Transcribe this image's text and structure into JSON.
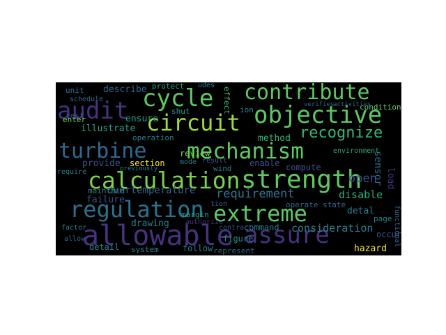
{
  "words": [
    {
      "text": "allowable",
      "color": "#46327e"
    },
    {
      "text": "assure",
      "color": "#46327e"
    },
    {
      "text": "regulation",
      "color": "#2c728e"
    },
    {
      "text": "calculation",
      "color": "#7ad151"
    },
    {
      "text": "strength",
      "color": "#5ec962"
    },
    {
      "text": "extreme",
      "color": "#5ec962"
    },
    {
      "text": "mechanism",
      "color": "#5ec962"
    },
    {
      "text": "turbine",
      "color": "#31688e"
    },
    {
      "text": "objective",
      "color": "#5ec962"
    },
    {
      "text": "contribute",
      "color": "#5ec962"
    },
    {
      "text": "circuit",
      "color": "#9fda3a"
    },
    {
      "text": "cycle",
      "color": "#5ec962"
    },
    {
      "text": "audit",
      "color": "#46327e"
    },
    {
      "text": "recognize",
      "color": "#35b779"
    },
    {
      "text": "requirement",
      "color": "#2c728e"
    },
    {
      "text": "consideration",
      "color": "#26828e"
    },
    {
      "text": "disable",
      "color": "#29af7f"
    },
    {
      "text": "command",
      "color": "#26828e"
    },
    {
      "text": "open",
      "color": "#3b528b"
    },
    {
      "text": "overtemperature",
      "color": "#31688e"
    },
    {
      "text": "failure",
      "color": "#3b528b"
    },
    {
      "text": "drawing",
      "color": "#26828e"
    },
    {
      "text": "describe",
      "color": "#31688e"
    },
    {
      "text": "illustrate",
      "color": "#22a884"
    },
    {
      "text": "ensure",
      "color": "#20a386"
    },
    {
      "text": "provide",
      "color": "#3b528b"
    },
    {
      "text": "method",
      "color": "#35b779"
    },
    {
      "text": "enable",
      "color": "#3b528b"
    },
    {
      "text": "compute",
      "color": "#3b528b"
    },
    {
      "text": "review",
      "color": "#7ad151"
    },
    {
      "text": "section",
      "color": "#fde725"
    },
    {
      "text": "margin",
      "color": "#20a386"
    },
    {
      "text": "maintain",
      "color": "#26828e"
    },
    {
      "text": "detail",
      "color": "#26828e"
    },
    {
      "text": "follow",
      "color": "#26828e"
    },
    {
      "text": "figure",
      "color": "#21918c"
    },
    {
      "text": "hazard",
      "color": "#fde725"
    },
    {
      "text": "occur",
      "color": "#3b528b"
    },
    {
      "text": "detal",
      "color": "#26828e"
    },
    {
      "text": "sensor",
      "color": "#31688e"
    },
    {
      "text": "load",
      "color": "#46327e"
    },
    {
      "text": "environment",
      "color": "#22a884"
    },
    {
      "text": "condition",
      "color": "#5ec962"
    },
    {
      "text": "operation",
      "color": "#26828e"
    },
    {
      "text": "schedule",
      "color": "#2c728e"
    },
    {
      "text": "unit",
      "color": "#2c728e"
    },
    {
      "text": "test",
      "color": "#3b528b"
    },
    {
      "text": "enter",
      "color": "#6ece58"
    },
    {
      "text": "protect",
      "color": "#20a386"
    },
    {
      "text": "shut",
      "color": "#20a386"
    },
    {
      "text": "effect",
      "color": "#35b779"
    },
    {
      "text": "ion",
      "color": "#26828e"
    },
    {
      "text": "system",
      "color": "#26828e"
    },
    {
      "text": "represent",
      "color": "#31688e"
    },
    {
      "text": "contract",
      "color": "#3b528b"
    },
    {
      "text": "authorize",
      "color": "#46327e"
    },
    {
      "text": "tion",
      "color": "#31688e"
    },
    {
      "text": "operate state",
      "color": "#31688e"
    },
    {
      "text": "page",
      "color": "#26828e"
    },
    {
      "text": "allow",
      "color": "#31688e"
    },
    {
      "text": "factor",
      "color": "#26828e"
    },
    {
      "text": "mode",
      "color": "#26828e"
    },
    {
      "text": "wind",
      "color": "#26828e"
    },
    {
      "text": "result",
      "color": "#3b528b"
    },
    {
      "text": "previously",
      "color": "#26828e"
    },
    {
      "text": "require",
      "color": "#26828e"
    },
    {
      "text": "udes",
      "color": "#26828e"
    },
    {
      "text": "functional",
      "color": "#31688e"
    },
    {
      "text": "verifies",
      "color": "#31688e"
    },
    {
      "text": "activities",
      "color": "#31688e"
    }
  ]
}
